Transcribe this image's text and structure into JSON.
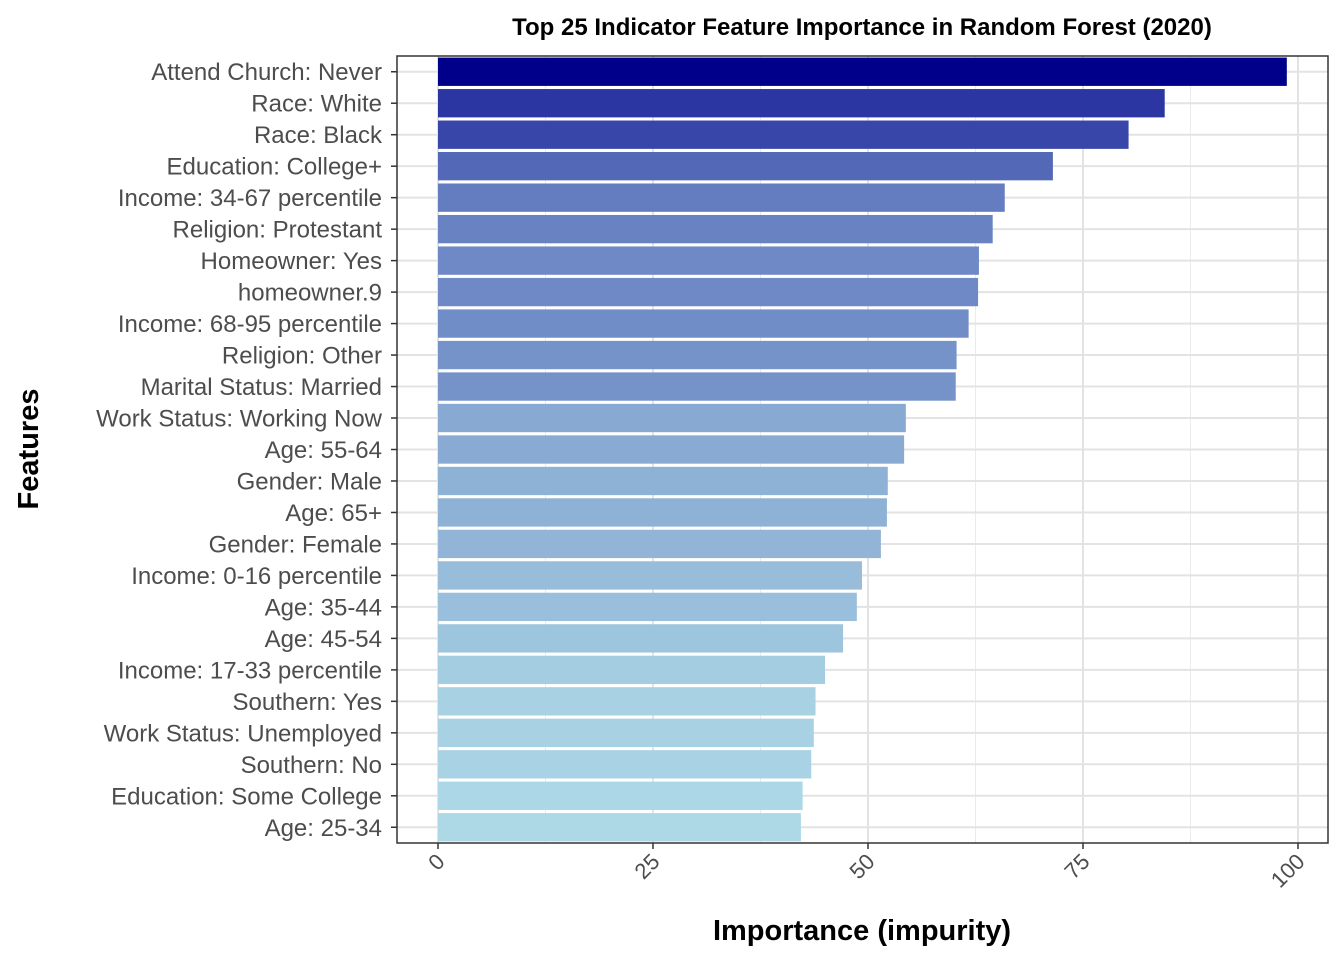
{
  "chart_data": {
    "type": "bar",
    "orientation": "horizontal",
    "title": "Top 25 Indicator Feature Importance in Random Forest (2020)",
    "xlabel": "Importance (impurity)",
    "ylabel": "Features",
    "xlim": [
      0,
      100
    ],
    "xticks": [
      "0",
      "25",
      "50",
      "75",
      "100"
    ],
    "xtick_values": [
      0,
      25,
      50,
      75,
      100
    ],
    "grid": true,
    "color_scale": [
      "#add8e6",
      "#00008b"
    ],
    "categories": [
      "Attend Church: Never",
      "Race: White",
      "Race: Black",
      "Education: College+",
      "Income: 34-67 percentile",
      "Religion: Protestant",
      "Homeowner: Yes",
      "homeowner.9",
      "Income: 68-95 percentile",
      "Religion: Other",
      "Marital Status: Married",
      "Work Status: Working Now",
      "Age: 55-64",
      "Gender: Male",
      "Age: 65+",
      "Gender: Female",
      "Income: 0-16 percentile",
      "Age: 35-44",
      "Age: 45-54",
      "Income: 17-33 percentile",
      "Southern: Yes",
      "Work Status: Unemployed",
      "Southern: No",
      "Education: Some College",
      "Age: 25-34"
    ],
    "values": [
      98.7,
      84.5,
      80.3,
      71.5,
      65.9,
      64.5,
      62.9,
      62.8,
      61.7,
      60.3,
      60.2,
      54.4,
      54.2,
      52.3,
      52.2,
      51.5,
      49.3,
      48.7,
      47.1,
      45.0,
      43.9,
      43.7,
      43.4,
      42.4,
      42.2
    ]
  }
}
